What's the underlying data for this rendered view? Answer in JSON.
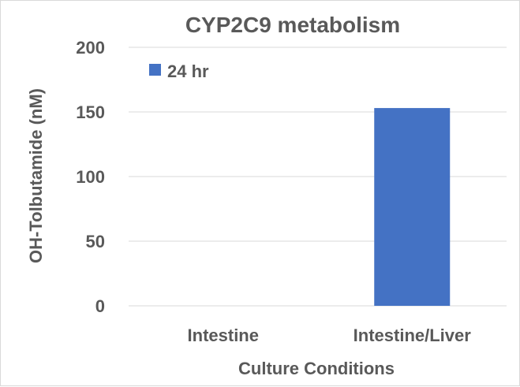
{
  "chart_data": {
    "type": "bar",
    "title": "CYP2C9 metabolism",
    "xlabel": "Culture Conditions",
    "ylabel": "OH-Tolbutamide (nM)",
    "categories": [
      "Intestine",
      "Intestine/Liver"
    ],
    "series": [
      {
        "name": "24 hr",
        "values": [
          0,
          153
        ],
        "color": "#4472c4"
      }
    ],
    "ylim": [
      0,
      200
    ],
    "yticks": [
      0,
      50,
      100,
      150,
      200
    ],
    "grid": true,
    "legend": "top-left"
  }
}
